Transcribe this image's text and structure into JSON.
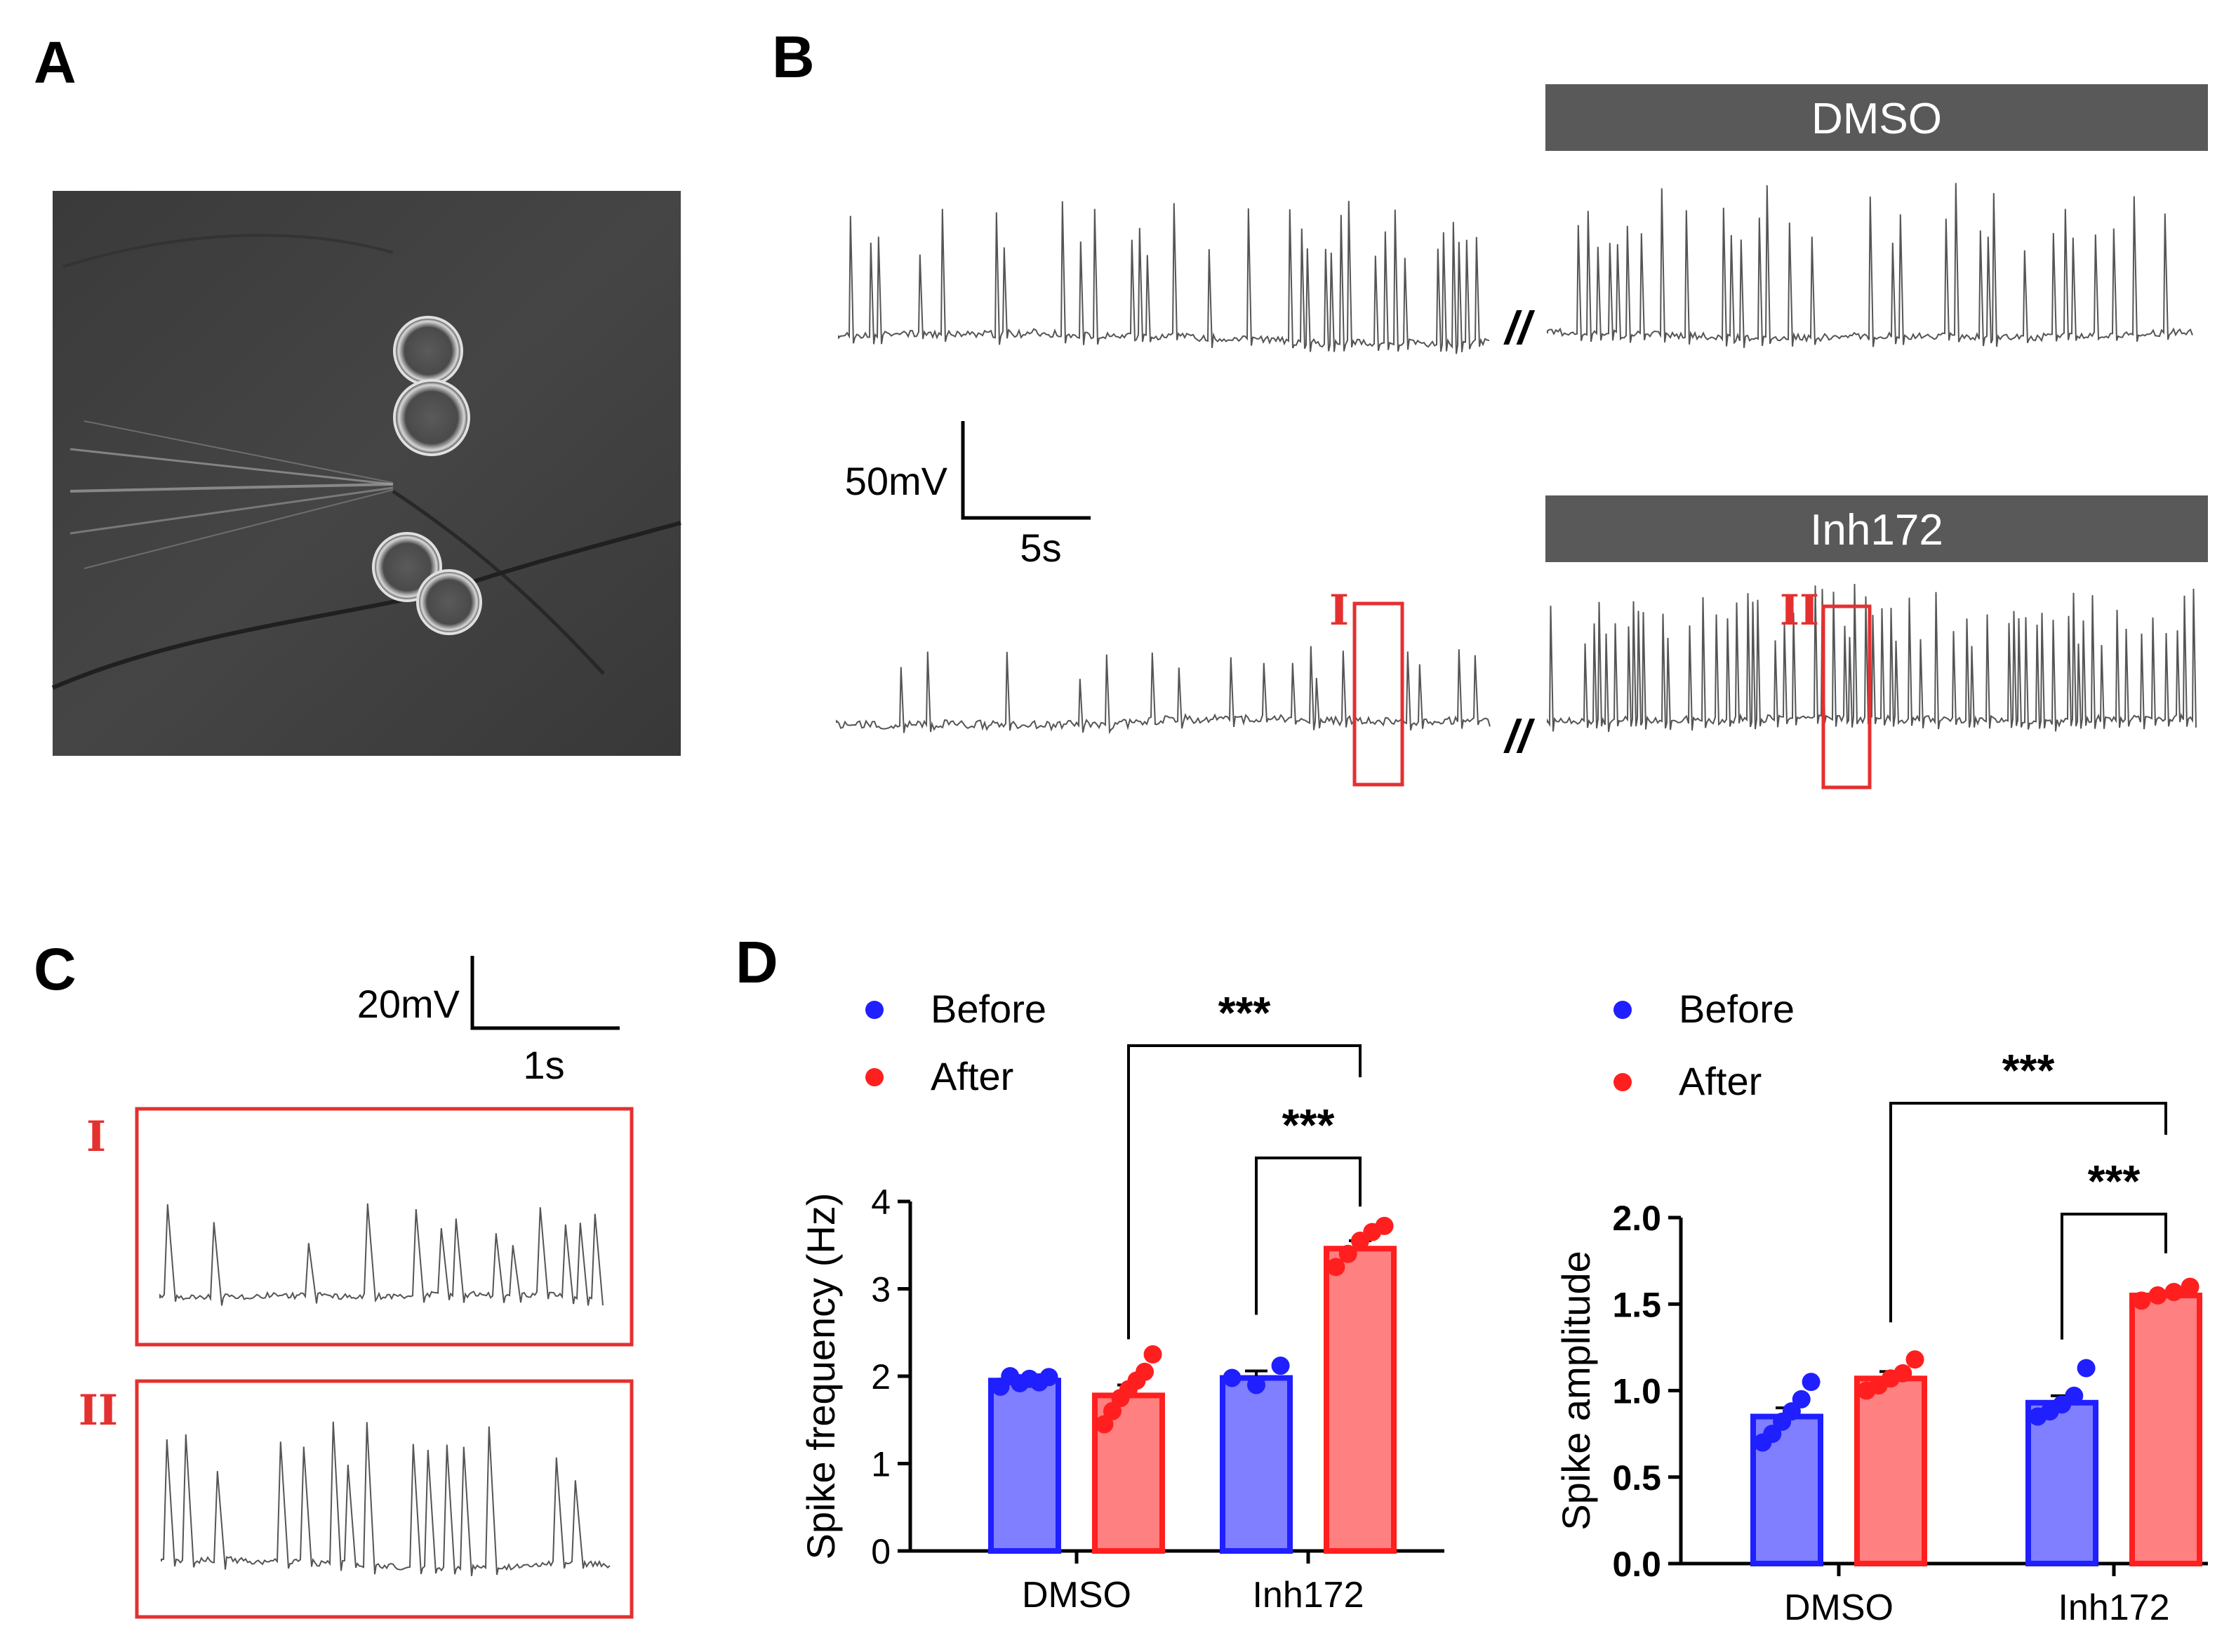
{
  "panels": {
    "a": "A",
    "b": "B",
    "c": "C",
    "d": "D"
  },
  "panel_b": {
    "dmso_bar_label": "DMSO",
    "inh_bar_label": "Inh172",
    "break_mark": "//",
    "scale_voltage": "50mV",
    "scale_time": "5s",
    "box_i_label": "I",
    "box_ii_label": "II"
  },
  "panel_c": {
    "scale_voltage": "20mV",
    "scale_time": "1s",
    "label_i": "I",
    "label_ii": "II"
  },
  "colors": {
    "before": "#1f1fff",
    "before_fill": "#7f7fff",
    "after": "#ff1f1f",
    "after_fill": "#ff8080",
    "trace": "#555555",
    "bar_header": "#595959",
    "box": "#e53030"
  },
  "chart_data": [
    {
      "type": "bar",
      "categories": [
        "DMSO",
        "Inh172"
      ],
      "ylabel": "Spike frequency (Hz)",
      "ylim": [
        0,
        4
      ],
      "yticks": [
        "0",
        "1",
        "2",
        "3",
        "4"
      ],
      "legend": [
        "Before",
        "After"
      ],
      "significance": [
        "***",
        "***"
      ],
      "series": [
        {
          "name": "Before",
          "values": [
            1.95,
            1.98
          ],
          "sem": [
            0.05,
            0.08
          ],
          "points": [
            [
              1.88,
              2.0,
              1.92,
              1.97,
              1.93,
              1.99
            ],
            [
              1.98,
              1.9,
              2.12
            ]
          ]
        },
        {
          "name": "After",
          "values": [
            1.78,
            3.46
          ],
          "sem": [
            0.12,
            0.09
          ],
          "points": [
            [
              1.45,
              1.6,
              1.75,
              1.85,
              1.95,
              2.05,
              2.25
            ],
            [
              3.25,
              3.4,
              3.55,
              3.65,
              3.72
            ]
          ]
        }
      ]
    },
    {
      "type": "bar",
      "categories": [
        "DMSO",
        "Inh172"
      ],
      "ylabel": "Spike amplitude",
      "ylim": [
        0,
        2.0
      ],
      "yticks": [
        "0.0",
        "0.5",
        "1.0",
        "1.5",
        "2.0"
      ],
      "legend": [
        "Before",
        "After"
      ],
      "significance": [
        "***",
        "***"
      ],
      "series": [
        {
          "name": "Before",
          "values": [
            0.85,
            0.93
          ],
          "sem": [
            0.05,
            0.04
          ],
          "points": [
            [
              0.7,
              0.75,
              0.82,
              0.88,
              0.95,
              1.05
            ],
            [
              0.85,
              0.88,
              0.92,
              0.97,
              1.13
            ]
          ]
        },
        {
          "name": "After",
          "values": [
            1.07,
            1.55
          ],
          "sem": [
            0.04,
            0.02
          ],
          "points": [
            [
              1.0,
              1.03,
              1.07,
              1.1,
              1.18
            ],
            [
              1.52,
              1.55,
              1.57,
              1.6
            ]
          ]
        }
      ]
    }
  ]
}
